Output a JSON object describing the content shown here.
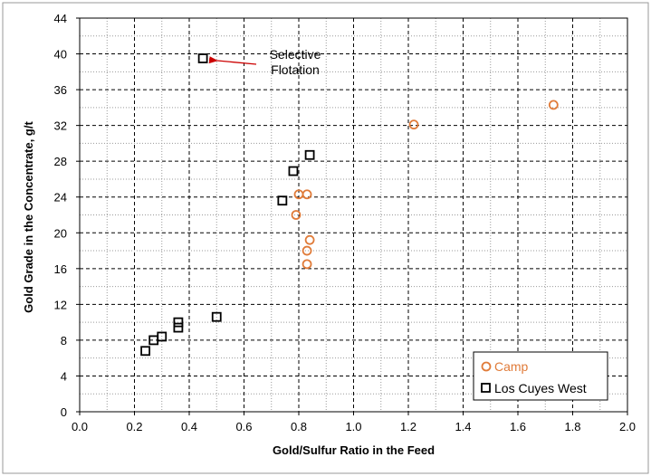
{
  "chart_data": {
    "type": "scatter",
    "title": "",
    "xlabel": "Gold/Sulfur Ratio in the Feed",
    "ylabel": "Gold Grade in the Concentrate, g/t",
    "xlim": [
      0.0,
      2.0
    ],
    "ylim": [
      0,
      44
    ],
    "x_ticks": [
      0.0,
      0.2,
      0.4,
      0.6,
      0.8,
      1.0,
      1.2,
      1.4,
      1.6,
      1.8,
      2.0
    ],
    "x_tick_labels": [
      "0.0",
      "0.2",
      "0.4",
      "0.6",
      "0.8",
      "1.0",
      "1.2",
      "1.4",
      "1.6",
      "1.8",
      "2.0"
    ],
    "y_ticks": [
      0,
      4,
      8,
      12,
      16,
      20,
      24,
      28,
      32,
      36,
      40,
      44
    ],
    "y_tick_labels": [
      "0",
      "4",
      "8",
      "12",
      "16",
      "20",
      "24",
      "28",
      "32",
      "36",
      "40",
      "44"
    ],
    "x_minor_gridlines": [
      0.1,
      0.3,
      0.5,
      0.7,
      0.9,
      1.1,
      1.3,
      1.5,
      1.7,
      1.9
    ],
    "y_minor_gridlines": [
      2,
      6,
      10,
      14,
      18,
      22,
      26,
      30,
      34,
      38,
      42
    ],
    "grid": true,
    "legend_position": "bottom-right",
    "series": [
      {
        "name": "Camp",
        "marker": "circle",
        "color": "#e07b39",
        "points": [
          {
            "x": 0.8,
            "y": 24.3
          },
          {
            "x": 0.83,
            "y": 24.3
          },
          {
            "x": 0.79,
            "y": 22.0
          },
          {
            "x": 0.84,
            "y": 19.2
          },
          {
            "x": 0.83,
            "y": 18.0
          },
          {
            "x": 0.83,
            "y": 16.5
          },
          {
            "x": 1.22,
            "y": 32.1
          },
          {
            "x": 1.73,
            "y": 34.3
          }
        ]
      },
      {
        "name": "Los Cuyes West",
        "marker": "square",
        "color": "#000000",
        "points": [
          {
            "x": 0.45,
            "y": 39.5
          },
          {
            "x": 0.84,
            "y": 28.7
          },
          {
            "x": 0.78,
            "y": 26.9
          },
          {
            "x": 0.74,
            "y": 23.6
          },
          {
            "x": 0.5,
            "y": 10.6
          },
          {
            "x": 0.36,
            "y": 10.0
          },
          {
            "x": 0.36,
            "y": 9.4
          },
          {
            "x": 0.3,
            "y": 8.4
          },
          {
            "x": 0.27,
            "y": 8.0
          },
          {
            "x": 0.24,
            "y": 6.8
          }
        ]
      }
    ],
    "annotations": [
      {
        "text_lines": [
          "Selective",
          "Flotation"
        ],
        "points_to": {
          "x": 0.45,
          "y": 39.5
        },
        "color": "#cc0000"
      }
    ]
  }
}
